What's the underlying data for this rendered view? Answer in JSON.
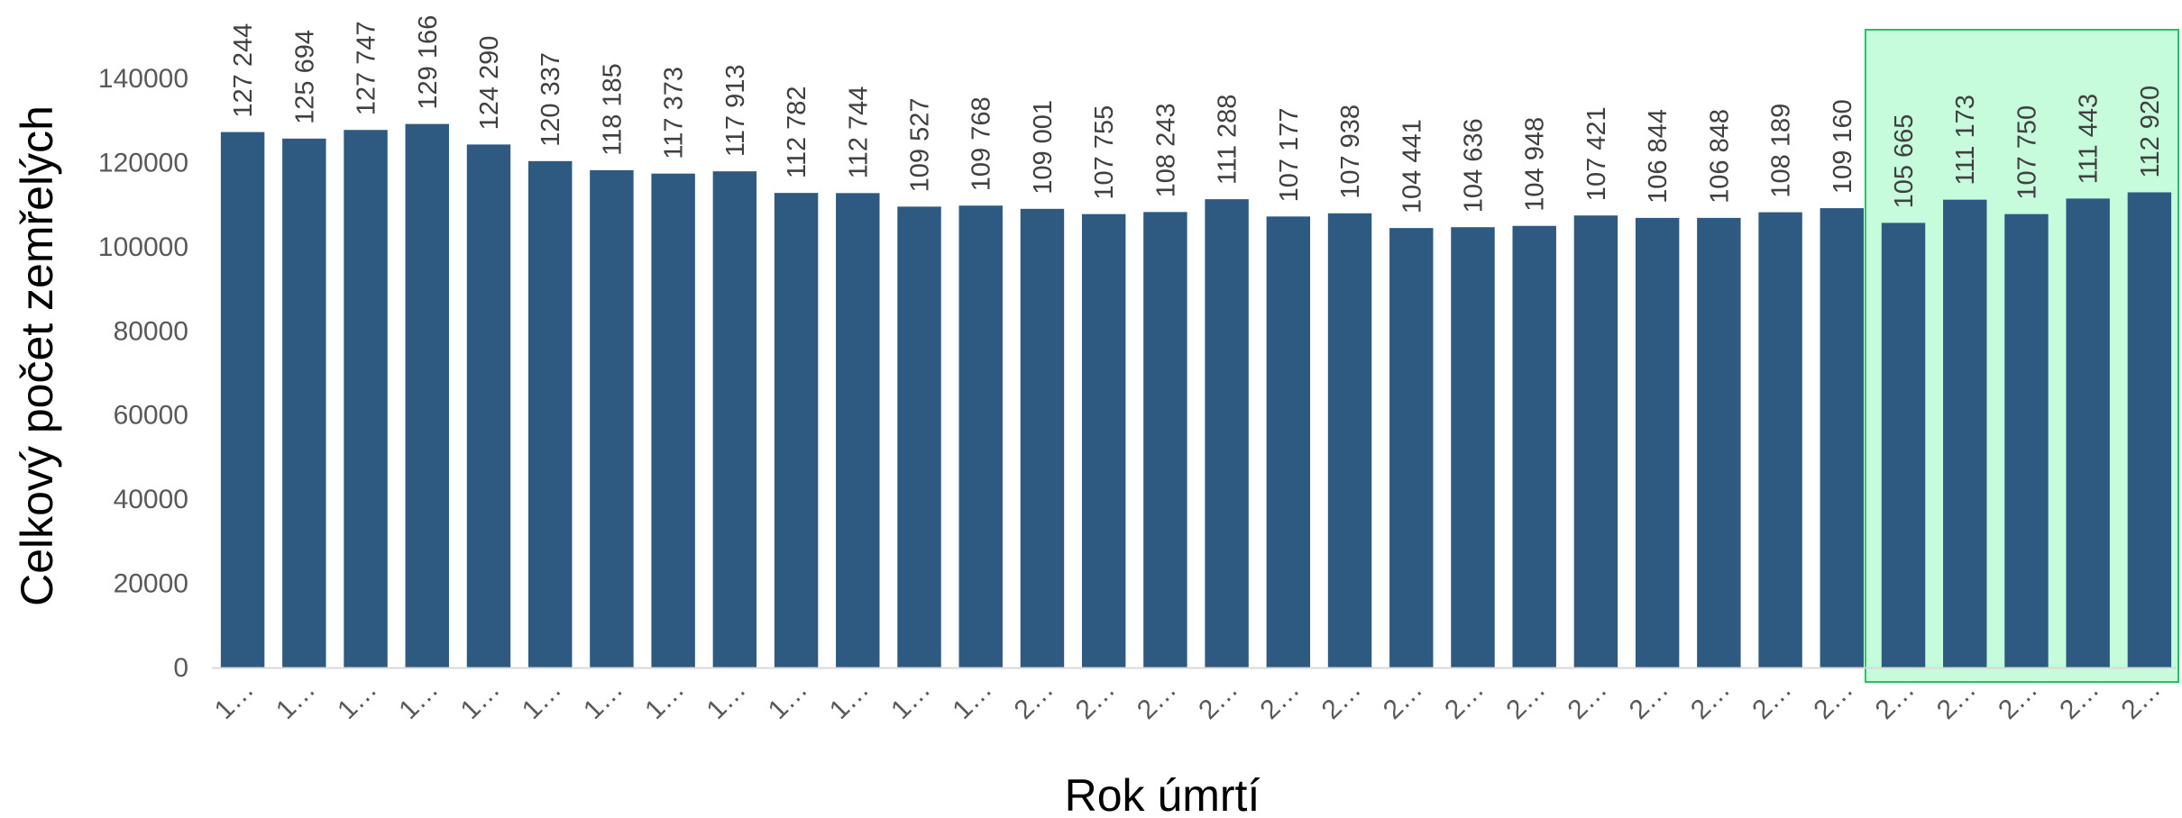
{
  "chart_data": {
    "type": "bar",
    "xlabel": "Rok úmrtí",
    "ylabel": "Celkový počet zemřelých",
    "ylim": [
      0,
      140000
    ],
    "yticks": [
      0,
      20000,
      40000,
      60000,
      80000,
      100000,
      120000,
      140000
    ],
    "grid": false,
    "categories": [
      "1…",
      "1…",
      "1…",
      "1…",
      "1…",
      "1…",
      "1…",
      "1…",
      "1…",
      "1…",
      "1…",
      "1…",
      "1…",
      "2…",
      "2…",
      "2…",
      "2…",
      "2…",
      "2…",
      "2…",
      "2…",
      "2…",
      "2…",
      "2…",
      "2…",
      "2…",
      "2…",
      "2…",
      "2…",
      "2…",
      "2…",
      "2…"
    ],
    "values": [
      127244,
      125694,
      127747,
      129166,
      124290,
      120337,
      118185,
      117373,
      117913,
      112782,
      112744,
      109527,
      109768,
      109001,
      107755,
      108243,
      111288,
      107177,
      107938,
      104441,
      104636,
      104948,
      107421,
      106844,
      106848,
      108189,
      109160,
      105665,
      111173,
      107750,
      111443,
      112920
    ],
    "value_labels": [
      "127 244",
      "125 694",
      "127 747",
      "129 166",
      "124 290",
      "120 337",
      "118 185",
      "117 373",
      "117 913",
      "112 782",
      "112 744",
      "109 527",
      "109 768",
      "109 001",
      "107 755",
      "108 243",
      "111 288",
      "107 177",
      "107 938",
      "104 441",
      "104 636",
      "104 948",
      "107 421",
      "106 844",
      "106 848",
      "108 189",
      "109 160",
      "105 665",
      "111 173",
      "107 750",
      "111 443",
      "112 920"
    ],
    "highlight_range": [
      27,
      31
    ],
    "colors": {
      "bar": "#2E5A82",
      "highlight_fill": "#C6FCDC",
      "highlight_border": "#22C55E",
      "axis_line": "#D9D9D9"
    }
  }
}
